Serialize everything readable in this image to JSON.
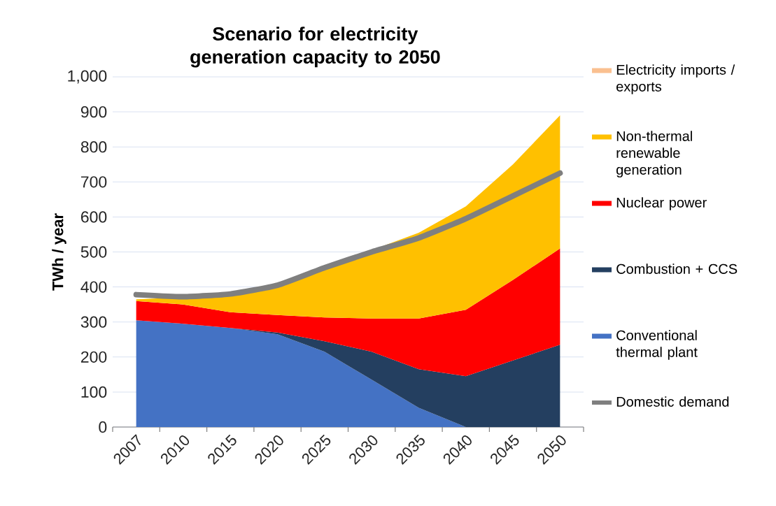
{
  "chart_data": {
    "type": "area",
    "stacked": true,
    "title": "Scenario for electricity generation capacity to 2050",
    "ylabel": "TWh / year",
    "categories": [
      "2007",
      "2010",
      "2015",
      "2020",
      "2025",
      "2030",
      "2035",
      "2040",
      "2045",
      "2050"
    ],
    "series": [
      {
        "name": "Conventional thermal plant",
        "color": "#4472c4",
        "values": [
          305,
          295,
          283,
          265,
          215,
          135,
          55,
          0,
          0,
          0
        ]
      },
      {
        "name": "Combustion + CCS",
        "color": "#243f60",
        "values": [
          null,
          null,
          0,
          5,
          30,
          80,
          110,
          145,
          190,
          235
        ]
      },
      {
        "name": "Nuclear power",
        "color": "#ff0000",
        "values": [
          55,
          55,
          45,
          50,
          68,
          95,
          145,
          190,
          230,
          275
        ]
      },
      {
        "name": "Non-thermal renewable generation",
        "color": "#ffc000",
        "values": [
          5,
          20,
          57,
          90,
          142,
          195,
          245,
          295,
          330,
          380
        ]
      },
      {
        "name": "Electricity imports / exports",
        "color": "#fac090",
        "values": [
          null,
          null,
          null,
          null,
          null,
          null,
          null,
          null,
          null,
          null
        ]
      },
      {
        "name": "Domestic demand",
        "type": "line",
        "color": "#7f7f7f",
        "values": [
          378,
          372,
          380,
          405,
          455,
          500,
          540,
          595,
          660,
          725
        ]
      }
    ],
    "ylim": [
      0,
      1000
    ],
    "yticks": [
      0,
      100,
      200,
      300,
      400,
      500,
      600,
      700,
      800,
      900,
      {
        "value": 1000,
        "label": "1,000"
      }
    ],
    "grid": "y",
    "legend": "right"
  }
}
